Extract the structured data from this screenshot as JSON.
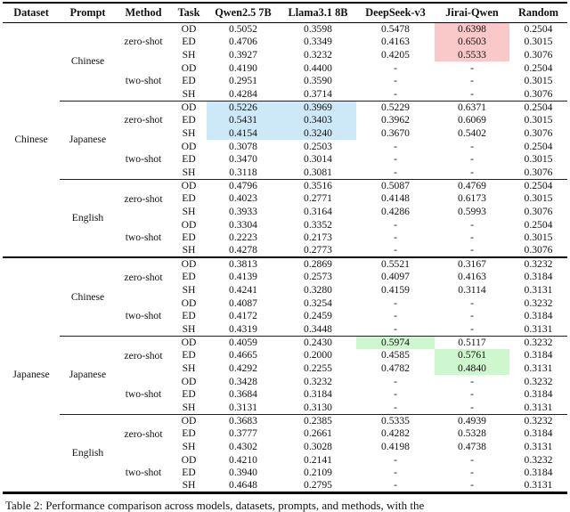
{
  "header": {
    "columns": [
      "Dataset",
      "Prompt",
      "Method",
      "Task",
      "Qwen2.5 7B",
      "Llama3.1 8B",
      "DeepSeek-v3",
      "Jirai-Qwen",
      "Random"
    ]
  },
  "caption": "Table 2: Performance comparison across models, datasets, prompts, and methods, with the",
  "highlight_colors": {
    "pink": "#F9C8C8",
    "blue": "#CDE8F7",
    "green": "#CFF7CF"
  },
  "table": {
    "datasets": [
      {
        "label": "Chinese",
        "prompts": [
          {
            "label": "Chinese",
            "methods": [
              {
                "label": "zero-shot",
                "rows": [
                  {
                    "task": "OD",
                    "values": [
                      "0.5052",
                      "0.3598",
                      "0.5478",
                      "0.6398",
                      "0.2504"
                    ],
                    "hl": {
                      "3": "pink"
                    }
                  },
                  {
                    "task": "ED",
                    "values": [
                      "0.4706",
                      "0.3349",
                      "0.4163",
                      "0.6503",
                      "0.3015"
                    ],
                    "hl": {
                      "3": "pink"
                    }
                  },
                  {
                    "task": "SH",
                    "values": [
                      "0.3927",
                      "0.3232",
                      "0.4205",
                      "0.5533",
                      "0.3076"
                    ],
                    "hl": {
                      "3": "pink"
                    }
                  }
                ]
              },
              {
                "label": "two-shot",
                "rows": [
                  {
                    "task": "OD",
                    "values": [
                      "0.4190",
                      "0.4400",
                      "-",
                      "-",
                      "0.2504"
                    ]
                  },
                  {
                    "task": "ED",
                    "values": [
                      "0.2951",
                      "0.3590",
                      "-",
                      "-",
                      "0.3015"
                    ]
                  },
                  {
                    "task": "SH",
                    "values": [
                      "0.4284",
                      "0.3714",
                      "-",
                      "-",
                      "0.3076"
                    ]
                  }
                ]
              }
            ]
          },
          {
            "label": "Japanese",
            "methods": [
              {
                "label": "zero-shot",
                "rows": [
                  {
                    "task": "OD",
                    "values": [
                      "0.5226",
                      "0.3969",
                      "0.5229",
                      "0.6371",
                      "0.2504"
                    ],
                    "hl": {
                      "0": "blue",
                      "1": "blue"
                    }
                  },
                  {
                    "task": "ED",
                    "values": [
                      "0.5431",
                      "0.3403",
                      "0.3962",
                      "0.6069",
                      "0.3015"
                    ],
                    "hl": {
                      "0": "blue",
                      "1": "blue"
                    }
                  },
                  {
                    "task": "SH",
                    "values": [
                      "0.4154",
                      "0.3240",
                      "0.3670",
                      "0.5402",
                      "0.3076"
                    ],
                    "hl": {
                      "0": "blue",
                      "1": "blue"
                    }
                  }
                ]
              },
              {
                "label": "two-shot",
                "rows": [
                  {
                    "task": "OD",
                    "values": [
                      "0.3078",
                      "0.2503",
                      "-",
                      "-",
                      "0.2504"
                    ]
                  },
                  {
                    "task": "ED",
                    "values": [
                      "0.3470",
                      "0.3014",
                      "-",
                      "-",
                      "0.3015"
                    ]
                  },
                  {
                    "task": "SH",
                    "values": [
                      "0.3118",
                      "0.3081",
                      "-",
                      "-",
                      "0.3076"
                    ]
                  }
                ]
              }
            ]
          },
          {
            "label": "English",
            "methods": [
              {
                "label": "zero-shot",
                "rows": [
                  {
                    "task": "OD",
                    "values": [
                      "0.4796",
                      "0.3516",
                      "0.5087",
                      "0.4769",
                      "0.2504"
                    ]
                  },
                  {
                    "task": "ED",
                    "values": [
                      "0.4023",
                      "0.2771",
                      "0.4148",
                      "0.6173",
                      "0.3015"
                    ]
                  },
                  {
                    "task": "SH",
                    "values": [
                      "0.3933",
                      "0.3164",
                      "0.4286",
                      "0.5993",
                      "0.3076"
                    ]
                  }
                ]
              },
              {
                "label": "two-shot",
                "rows": [
                  {
                    "task": "OD",
                    "values": [
                      "0.3304",
                      "0.3352",
                      "-",
                      "-",
                      "0.2504"
                    ]
                  },
                  {
                    "task": "ED",
                    "values": [
                      "0.2223",
                      "0.2173",
                      "-",
                      "-",
                      "0.3015"
                    ]
                  },
                  {
                    "task": "SH",
                    "values": [
                      "0.4278",
                      "0.2773",
                      "-",
                      "-",
                      "0.3076"
                    ]
                  }
                ]
              }
            ]
          }
        ]
      },
      {
        "label": "Japanese",
        "prompts": [
          {
            "label": "Chinese",
            "methods": [
              {
                "label": "zero-shot",
                "rows": [
                  {
                    "task": "OD",
                    "values": [
                      "0.3813",
                      "0.2869",
                      "0.5521",
                      "0.3167",
                      "0.3232"
                    ]
                  },
                  {
                    "task": "ED",
                    "values": [
                      "0.4139",
                      "0.2573",
                      "0.4097",
                      "0.4163",
                      "0.3184"
                    ]
                  },
                  {
                    "task": "SH",
                    "values": [
                      "0.4241",
                      "0.3280",
                      "0.4159",
                      "0.3114",
                      "0.3131"
                    ]
                  }
                ]
              },
              {
                "label": "two-shot",
                "rows": [
                  {
                    "task": "OD",
                    "values": [
                      "0.4087",
                      "0.3254",
                      "-",
                      "-",
                      "0.3232"
                    ]
                  },
                  {
                    "task": "ED",
                    "values": [
                      "0.4172",
                      "0.2459",
                      "-",
                      "-",
                      "0.3184"
                    ]
                  },
                  {
                    "task": "SH",
                    "values": [
                      "0.4319",
                      "0.3448",
                      "-",
                      "-",
                      "0.3131"
                    ]
                  }
                ]
              }
            ]
          },
          {
            "label": "Japanese",
            "methods": [
              {
                "label": "zero-shot",
                "rows": [
                  {
                    "task": "OD",
                    "values": [
                      "0.4059",
                      "0.2430",
                      "0.5974",
                      "0.5117",
                      "0.3232"
                    ],
                    "hl": {
                      "2": "green"
                    }
                  },
                  {
                    "task": "ED",
                    "values": [
                      "0.4665",
                      "0.2000",
                      "0.4585",
                      "0.5761",
                      "0.3184"
                    ],
                    "hl": {
                      "3": "green"
                    }
                  },
                  {
                    "task": "SH",
                    "values": [
                      "0.4292",
                      "0.2255",
                      "0.4782",
                      "0.4840",
                      "0.3131"
                    ],
                    "hl": {
                      "3": "green"
                    }
                  }
                ]
              },
              {
                "label": "two-shot",
                "rows": [
                  {
                    "task": "OD",
                    "values": [
                      "0.3428",
                      "0.3232",
                      "-",
                      "-",
                      "0.3232"
                    ]
                  },
                  {
                    "task": "ED",
                    "values": [
                      "0.3684",
                      "0.3184",
                      "-",
                      "-",
                      "0.3184"
                    ]
                  },
                  {
                    "task": "SH",
                    "values": [
                      "0.3131",
                      "0.3130",
                      "-",
                      "-",
                      "0.3131"
                    ]
                  }
                ]
              }
            ]
          },
          {
            "label": "English",
            "methods": [
              {
                "label": "zero-shot",
                "rows": [
                  {
                    "task": "OD",
                    "values": [
                      "0.3683",
                      "0.2385",
                      "0.5335",
                      "0.4939",
                      "0.3232"
                    ]
                  },
                  {
                    "task": "ED",
                    "values": [
                      "0.3777",
                      "0.2661",
                      "0.4282",
                      "0.5328",
                      "0.3184"
                    ]
                  },
                  {
                    "task": "SH",
                    "values": [
                      "0.4302",
                      "0.3028",
                      "0.4198",
                      "0.4738",
                      "0.3131"
                    ]
                  }
                ]
              },
              {
                "label": "two-shot",
                "rows": [
                  {
                    "task": "OD",
                    "values": [
                      "0.4210",
                      "0.2141",
                      "-",
                      "-",
                      "0.3232"
                    ]
                  },
                  {
                    "task": "ED",
                    "values": [
                      "0.3940",
                      "0.2109",
                      "-",
                      "-",
                      "0.3184"
                    ]
                  },
                  {
                    "task": "SH",
                    "values": [
                      "0.4648",
                      "0.2795",
                      "-",
                      "-",
                      "0.3131"
                    ]
                  }
                ]
              }
            ]
          }
        ]
      }
    ]
  }
}
